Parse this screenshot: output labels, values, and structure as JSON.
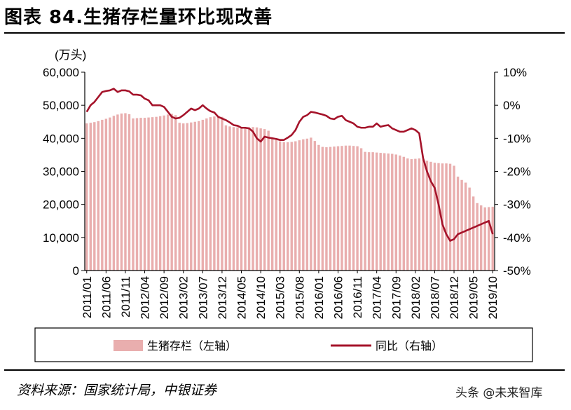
{
  "header": {
    "title": "图表 84.生猪存栏量环比现改善"
  },
  "footer": {
    "source": "资料来源：国家统计局，中银证券",
    "watermark": "头条 @未来智库"
  },
  "chart_data": {
    "type": "bar+line",
    "unit_label": "(万头)",
    "left_axis": {
      "ylim": [
        0,
        60000
      ],
      "ticks": [
        0,
        10000,
        20000,
        30000,
        40000,
        50000,
        60000
      ],
      "tick_labels": [
        "0",
        "10,000",
        "20,000",
        "30,000",
        "40,000",
        "50,000",
        "60,000"
      ]
    },
    "right_axis": {
      "ylim": [
        -50,
        10
      ],
      "ticks": [
        -50,
        -40,
        -30,
        -20,
        -10,
        0,
        10
      ],
      "tick_labels": [
        "-50%",
        "-40%",
        "-30%",
        "-20%",
        "-10%",
        "0%",
        "10%"
      ]
    },
    "x_tick_labels": [
      "2011/01",
      "2011/06",
      "2011/11",
      "2012/04",
      "2012/09",
      "2013/02",
      "2013/07",
      "2013/12",
      "2014/05",
      "2014/10",
      "2015/03",
      "2015/08",
      "2016/01",
      "2016/06",
      "2016/11",
      "2017/04",
      "2017/09",
      "2018/02",
      "2018/07",
      "2018/12",
      "2019/05",
      "2019/10"
    ],
    "x_start": "2011/01",
    "legend_position": "bottom",
    "colors": {
      "bar": "#e9aeae",
      "line": "#a5132a"
    },
    "series": [
      {
        "name": "生猪存栏（左轴）",
        "axis": "left",
        "kind": "bar",
        "values": [
          44500,
          44700,
          44900,
          45200,
          45600,
          45900,
          46300,
          46800,
          47200,
          47500,
          47600,
          47300,
          46000,
          46100,
          46200,
          46200,
          46300,
          46400,
          46500,
          46700,
          46900,
          47200,
          47400,
          47000,
          44700,
          44500,
          44600,
          44800,
          45000,
          45200,
          45600,
          46000,
          46400,
          46600,
          46700,
          46500,
          43900,
          43600,
          43400,
          43300,
          43200,
          43100,
          43300,
          43400,
          43300,
          43000,
          42800,
          42300,
          40200,
          39600,
          39100,
          38800,
          38800,
          38900,
          39100,
          39400,
          39700,
          39900,
          40200,
          39200,
          38000,
          37400,
          37300,
          37400,
          37500,
          37600,
          37700,
          37800,
          37800,
          37700,
          37600,
          37000,
          35900,
          35800,
          35800,
          35700,
          35600,
          35500,
          35400,
          35300,
          35100,
          34800,
          34400,
          33900,
          33700,
          33800,
          33900,
          33600,
          33200,
          32900,
          32600,
          32500,
          32400,
          32400,
          32300,
          31700,
          28400,
          27400,
          26600,
          25100,
          22400,
          20400,
          19700,
          19100,
          19200,
          19300
        ]
      },
      {
        "name": "同比（右轴）",
        "axis": "right",
        "kind": "line",
        "values": [
          -2,
          0,
          1,
          2.5,
          4,
          4.3,
          4.5,
          5,
          4,
          4.5,
          4.5,
          4.2,
          3.2,
          3.2,
          3,
          2,
          1.5,
          0,
          0,
          0,
          -0.5,
          -2,
          -3.5,
          -4,
          -3.8,
          -3,
          -2,
          -1,
          -1.5,
          -1,
          0,
          -1,
          -1.8,
          -2.2,
          -3.5,
          -4,
          -4.5,
          -5.2,
          -6,
          -6.2,
          -6.8,
          -6.8,
          -7,
          -8,
          -10,
          -11,
          -9.5,
          -9.8,
          -10,
          -10.2,
          -10.5,
          -10.5,
          -9.8,
          -9,
          -7.5,
          -5,
          -3.5,
          -3,
          -2,
          -2.2,
          -2.5,
          -2.8,
          -3.2,
          -4,
          -4.2,
          -3.5,
          -3.2,
          -4.5,
          -5,
          -5.5,
          -6.5,
          -6.8,
          -6.8,
          -6.5,
          -6.5,
          -5.5,
          -6.5,
          -6.2,
          -6,
          -7,
          -7.5,
          -8,
          -8,
          -7.5,
          -7,
          -7.5,
          -8.5,
          -16,
          -20,
          -23,
          -25,
          -30,
          -36,
          -39,
          -41,
          -40.5,
          -39,
          -38.5,
          -38,
          -37.5,
          -37,
          -36.5,
          -36,
          -35.5,
          -35,
          -39
        ]
      }
    ]
  }
}
